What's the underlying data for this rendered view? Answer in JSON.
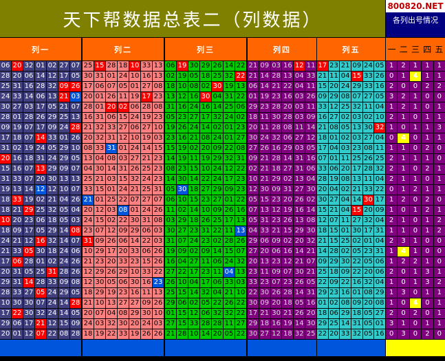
{
  "title": "天下帮数据总表二（列数据）",
  "site": "800820.NET",
  "subtitle": "各列出号情况",
  "headers": [
    "列一",
    "列二",
    "列三",
    "列四",
    "列五"
  ],
  "count_headers": [
    "一",
    "二",
    "三",
    "四",
    "五"
  ],
  "colors": {
    "c1": "#404080",
    "c2": "#ff8080",
    "c3": "#00cc00",
    "c4": "#800080",
    "c5": "#33cccc",
    "cnt": "#800080",
    "hit": "#ff0000",
    "blue": "#0055dd"
  },
  "rows": [
    [
      "06 20 32 01 02 27 07",
      "25 15 28 18 10 33 13",
      "06 19 30 29 26 14 22",
      "21 09 03 16 12 11",
      "17 23 21 09 24 05",
      "1 2 1 1 1"
    ],
    [
      "28 20 06 14 12 17 05",
      "30 31 01 24 10 16 13",
      "02 19 05 18 25 32 22",
      "21 14 28 13 04 33",
      "21 11 04 15 33 26",
      "0 1 4 1 1"
    ],
    [
      "25 31 16 28 32 09 26",
      "17 06 07 05 01 27 08",
      "18 10 08 02 30 19 13",
      "06 14 21 22 04 11",
      "15 20 24 29 33 16",
      "2 0 0 2 2"
    ],
    [
      "24 33 14 06 13 21 03",
      "20 01 26 11 19 17 23",
      "13 12 16 30 04 31 22",
      "01 19 23 16 03 26",
      "09 29 08 07 27 05",
      "3 2 1 0 0"
    ],
    [
      "30 27 03 17 05 21 07",
      "28 01 20 02 06 28 08",
      "31 16 24 16 14 25 06",
      "29 23 28 20 03 11",
      "33 12 25 32 11 04",
      "1 2 1 0 1"
    ],
    [
      "28 01 28 26 29 25 13",
      "16 31 06 15 24 19 23",
      "05 23 27 17 32 24 02",
      "18 11 30 28 03 09",
      "16 27 02 03 02 10",
      "2 1 0 1 1"
    ],
    [
      "09 19 07 17 09 24 28",
      "21 32 33 27 06 27 10",
      "19 26 24 14 02 01 23",
      "20 11 28 08 11 14",
      "21 08 05 13 30 32",
      "1 0 1 1 3"
    ],
    [
      "17 18 07 14 33 01 26",
      "20 32 31 12 10 19 03",
      "23 16 21 08 24 01 27",
      "30 24 32 06 27 12",
      "18 01 02 03 27 04",
      "0 4 0 1 1"
    ],
    [
      "31 02 19 24 05 29 10",
      "08 33 31 01 24 14 15",
      "15 19 02 20 09 22 08",
      "27 26 16 29 03 05",
      "17 04 03 23 08 11",
      "1 1 0 2 0"
    ],
    [
      "20 16 18 31 24 29 05",
      "13 04 08 03 27 21 23",
      "14 19 11 19 29 32 31",
      "09 21 28 14 31 16",
      "07 01 11 25 26 25",
      "2 1 1 1 0"
    ],
    [
      "15 16 07 13 29 09 07",
      "04 30 14 31 26 25 23",
      "08 23 15 10 24 12 22",
      "02 21 18 27 31 06",
      "33 06 20 17 28 32",
      "2 1 0 2 1"
    ],
    [
      "31 33 07 20 30 13 13",
      "25 21 03 15 32 24 23",
      "14 30 14 22 24 17 23",
      "10 21 29 02 13 04",
      "28 19 08 13 11 04",
      "2 1 1 0 1"
    ],
    [
      "19 13 14 12 12 10 07",
      "33 15 01 24 21 25 31",
      "05 30 18 27 29 09 23",
      "12 30 09 31 27 30 19",
      "20 04 02 21 33 22",
      "0 1 2 1 1"
    ],
    [
      "18 33 19 02 21 04 26",
      "21 01 25 22 07 27 07",
      "06 10 15 23 27 01 22",
      "05 15 23 20 26 02",
      "30 27 04 14 30 17",
      "1 2 0 2 0"
    ],
    [
      "18 21 29 25 32 05 04",
      "20 12 03 08 01 24 26",
      "11 02 14 10 09 26 16",
      "07 13 12 19 16 14",
      "15 21 04 15 20 09",
      "1 0 1 2 1"
    ],
    [
      "10 20 23 06 18 05 03",
      "24 15 02 22 30 31 08",
      "03 29 18 26 25 17 13",
      "05 31 23 26 13 08",
      "12 07 11 27 32 04",
      "2 1 0 1 2"
    ],
    [
      "18 09 17 05 29 14 08",
      "23 07 12 09 29 06 03",
      "30 27 23 31 22 11 13",
      "04 33 21 15 29 30",
      "18 15 01 30 17 31",
      "1 1 0 1 2"
    ],
    [
      "24 21 12 16 32 14 07",
      "31 09 26 06 14 22 03",
      "31 07 24 23 02 28 26",
      "29 06 09 02 20 32",
      "21 15 25 02 01 04",
      "2 3 1 0 0"
    ],
    [
      "21 33 05 30 18 24 06",
      "10 29 17 20 33 06 26",
      "19 09 02 09 14 15 07",
      "27 20 06 16 14 21",
      "14 28 02 05 23 31",
      "1 4 1 0 0"
    ],
    [
      "17 06 28 01 02 24 26",
      "21 23 20 33 23 15 26",
      "16 04 27 11 06 24 32",
      "20 13 23 12 21 07",
      "09 29 30 22 05 06",
      "1 2 2 1 0"
    ],
    [
      "20 31 05 25 31 28 26",
      "12 29 26 29 10 33 22",
      "27 22 17 23 11 04 13",
      "23 11 09 07 30 21",
      "25 18 09 22 20 06",
      "2 0 1 3 1"
    ],
    [
      "29 31 14 28 33 09 08",
      "12 30 05 06 30 16 23",
      "26 10 04 17 06 33 03",
      "33 23 07 23 26 05",
      "22 09 22 16 32 04",
      "1 0 1 3 2"
    ],
    [
      "28 33 27 05 24 29 05",
      "18 29 19 23 16 11 13",
      "25 15 14 32 04 21 10",
      "22 30 26 28 14 31",
      "29 23 16 01 08 29",
      "1 3 0 1 1"
    ],
    [
      "10 30 30 07 24 14 28",
      "21 10 13 27 27 09 26",
      "29 06 02 05 22 26 22",
      "30 09 20 18 05 16",
      "01 02 08 09 20 08",
      "1 0 4 0 1"
    ],
    [
      "17 22 30 32 24 14 05",
      "20 07 04 08 29 30 10",
      "01 15 12 06 32 32 22",
      "17 21 30 21 26 20",
      "18 06 29 18 05 27",
      "2 0 2 0 1"
    ],
    [
      "29 06 17 21 12 15 09",
      "24 03 32 30 20 24 03",
      "27 15 33 28 28 11 27",
      "29 18 16 19 14 30",
      "29 25 14 31 05 01",
      "3 1 0 1 1"
    ],
    [
      "20 01 12 07 22 08 28",
      "18 19 22 33 19 26 26",
      "21 28 10 14 20 05 22",
      "30 27 12 18 32 25",
      "22 20 33 32 05 16",
      "0 3 0 2 0"
    ]
  ],
  "hits": {
    "red": [
      "0-0-1",
      "0-1-1",
      "0-1-4",
      "0-2-1",
      "0-3-4",
      "0-4-0",
      "1-2-6",
      "1-4-3",
      "2-0-5",
      "2-0-6",
      "2-2-4",
      "3-0-5",
      "3-1-5",
      "3-2-3",
      "4-1-2",
      "4-1-3",
      "6-0-6",
      "6-4-5",
      "7-0-3",
      "9-0-0",
      "10-0-3",
      "13-0-1",
      "13-4-4",
      "14-0-2",
      "14-4-3",
      "15-0-0",
      "16-0-6",
      "17-0-3",
      "17-1-0",
      "18-0-2",
      "19-0-1",
      "20-0-4",
      "21-0-2",
      "22-0-3",
      "23-0-6",
      "24-0-1",
      "25-0-3",
      "26-0-3"
    ],
    "blue": [
      "3-0-6",
      "8-1-2",
      "12-0-3",
      "12-2-1",
      "13-1-0",
      "14-1-3",
      "16-2-6",
      "20-2-5",
      "21-1-6"
    ]
  },
  "yellow": [
    "1-2",
    "7-1",
    "18-1",
    "23-2"
  ]
}
